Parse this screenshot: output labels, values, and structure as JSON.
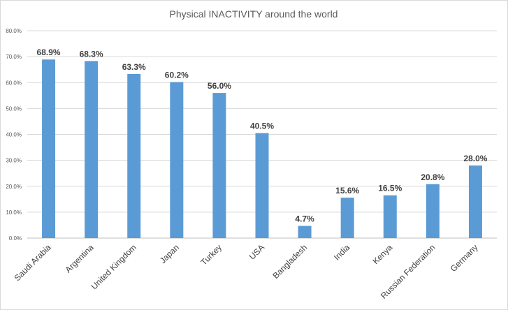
{
  "chart_data": {
    "type": "bar",
    "title": "Physical INACTIVITY around the world",
    "xlabel": "",
    "ylabel": "",
    "categories": [
      "Saudi Arabia",
      "Argentina",
      "United Kingdom",
      "Japan",
      "Turkey",
      "USA",
      "Bangladesh",
      "India",
      "Kenya",
      "Russian Federation",
      "Germany"
    ],
    "values": [
      68.9,
      68.3,
      63.3,
      60.2,
      56.0,
      40.5,
      4.7,
      15.6,
      16.5,
      20.8,
      28.0
    ],
    "data_labels": [
      "68.9%",
      "68.3%",
      "63.3%",
      "60.2%",
      "56.0%",
      "40.5%",
      "4.7%",
      "15.6%",
      "16.5%",
      "20.8%",
      "28.0%"
    ],
    "ylim": [
      0,
      80
    ],
    "y_ticks": [
      0,
      10,
      20,
      30,
      40,
      50,
      60,
      70,
      80
    ],
    "y_tick_labels": [
      "0.0%",
      "10.0%",
      "20.0%",
      "30.0%",
      "40.0%",
      "50.0%",
      "60.0%",
      "70.0%",
      "80.0%"
    ],
    "grid": true,
    "legend": "none",
    "bar_color": "#5b9bd5"
  }
}
